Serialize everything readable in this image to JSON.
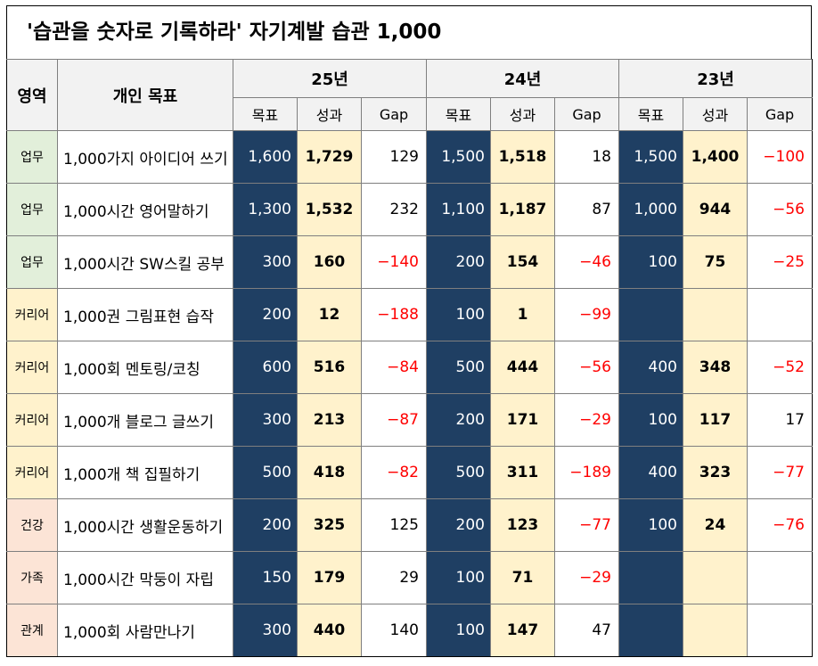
{
  "title": "'습관을 숫자로 기록하라'  자기계발 습관 1,000",
  "headers": {
    "area": "영역",
    "goal": "개인 목표",
    "years": [
      "25년",
      "24년",
      "23년"
    ],
    "sub": [
      "목표",
      "성과",
      "Gap"
    ]
  },
  "rows": [
    {
      "area": "업무",
      "area_type": "biz",
      "goal": "1,000가지 아이디어 쓰기",
      "y25": {
        "t": "1,600",
        "r": "1,729",
        "g": "129",
        "neg": false
      },
      "y24": {
        "t": "1,500",
        "r": "1,518",
        "g": "18",
        "neg": false
      },
      "y23": {
        "t": "1,500",
        "r": "1,400",
        "g": "−100",
        "neg": true
      }
    },
    {
      "area": "업무",
      "area_type": "biz",
      "goal": "1,000시간 영어말하기",
      "y25": {
        "t": "1,300",
        "r": "1,532",
        "g": "232",
        "neg": false
      },
      "y24": {
        "t": "1,100",
        "r": "1,187",
        "g": "87",
        "neg": false
      },
      "y23": {
        "t": "1,000",
        "r": "944",
        "g": "−56",
        "neg": true
      }
    },
    {
      "area": "업무",
      "area_type": "biz",
      "goal": "1,000시간 SW스킬 공부",
      "y25": {
        "t": "300",
        "r": "160",
        "g": "−140",
        "neg": true
      },
      "y24": {
        "t": "200",
        "r": "154",
        "g": "−46",
        "neg": true
      },
      "y23": {
        "t": "100",
        "r": "75",
        "g": "−25",
        "neg": true
      }
    },
    {
      "area": "커리어",
      "area_type": "career",
      "goal": "1,000권 그림표현 습작",
      "y25": {
        "t": "200",
        "r": "12",
        "g": "−188",
        "neg": true
      },
      "y24": {
        "t": "100",
        "r": "1",
        "g": "−99",
        "neg": true
      },
      "y23": {
        "t": "",
        "r": "",
        "g": "",
        "neg": false
      }
    },
    {
      "area": "커리어",
      "area_type": "career",
      "goal": "1,000회 멘토링/코칭",
      "y25": {
        "t": "600",
        "r": "516",
        "g": "−84",
        "neg": true
      },
      "y24": {
        "t": "500",
        "r": "444",
        "g": "−56",
        "neg": true
      },
      "y23": {
        "t": "400",
        "r": "348",
        "g": "−52",
        "neg": true
      }
    },
    {
      "area": "커리어",
      "area_type": "career",
      "goal": "1,000개 블로그 글쓰기",
      "y25": {
        "t": "300",
        "r": "213",
        "g": "−87",
        "neg": true
      },
      "y24": {
        "t": "200",
        "r": "171",
        "g": "−29",
        "neg": true
      },
      "y23": {
        "t": "100",
        "r": "117",
        "g": "17",
        "neg": false
      }
    },
    {
      "area": "커리어",
      "area_type": "career",
      "goal": "1,000개 책 집필하기",
      "y25": {
        "t": "500",
        "r": "418",
        "g": "−82",
        "neg": true
      },
      "y24": {
        "t": "500",
        "r": "311",
        "g": "−189",
        "neg": true
      },
      "y23": {
        "t": "400",
        "r": "323",
        "g": "−77",
        "neg": true
      }
    },
    {
      "area": "건강",
      "area_type": "other",
      "goal": "1,000시간 생활운동하기",
      "y25": {
        "t": "200",
        "r": "325",
        "g": "125",
        "neg": false
      },
      "y24": {
        "t": "200",
        "r": "123",
        "g": "−77",
        "neg": true
      },
      "y23": {
        "t": "100",
        "r": "24",
        "g": "−76",
        "neg": true
      }
    },
    {
      "area": "가족",
      "area_type": "other",
      "goal": "1,000시간 막둥이 자립",
      "y25": {
        "t": "150",
        "r": "179",
        "g": "29",
        "neg": false
      },
      "y24": {
        "t": "100",
        "r": "71",
        "g": "−29",
        "neg": true
      },
      "y23": {
        "t": "",
        "r": "",
        "g": "",
        "neg": false
      }
    },
    {
      "area": "관계",
      "area_type": "other",
      "goal": "1,000회 사람만나기",
      "y25": {
        "t": "300",
        "r": "440",
        "g": "140",
        "neg": false
      },
      "y24": {
        "t": "100",
        "r": "147",
        "g": "47",
        "neg": false
      },
      "y23": {
        "t": "",
        "r": "",
        "g": "",
        "neg": false
      }
    }
  ],
  "colors": {
    "target_bg": "#1f3f63",
    "result_bg": "#fff2cc",
    "negative_text": "#ff0000",
    "area_biz_bg": "#e2efda",
    "area_career_bg": "#fff2cc",
    "area_other_bg": "#fce4d6",
    "header_bg": "#f2f2f2"
  }
}
